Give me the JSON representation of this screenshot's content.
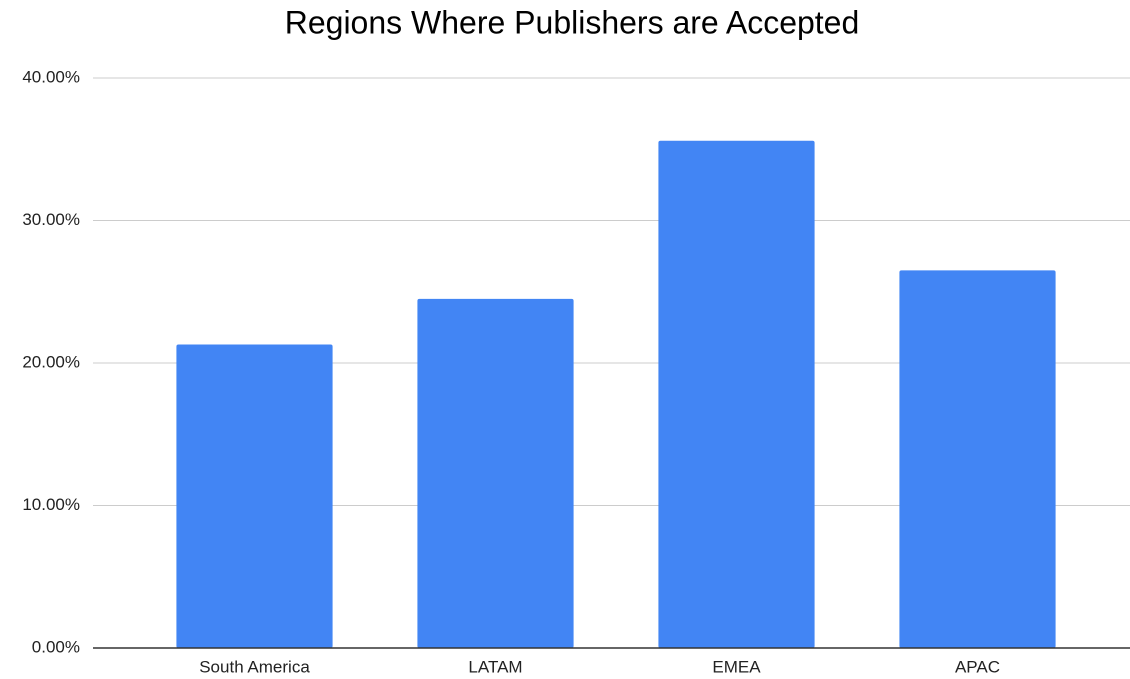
{
  "chart_data": {
    "type": "bar",
    "title": "Regions Where Publishers are Accepted",
    "categories": [
      "South America",
      "LATAM",
      "EMEA",
      "APAC"
    ],
    "values": [
      21.3,
      24.5,
      35.6,
      26.5
    ],
    "color": "#4285f4",
    "ylim": [
      0,
      40
    ],
    "yticks": [
      {
        "value": 0,
        "label": "0.00%"
      },
      {
        "value": 10,
        "label": "10.00%"
      },
      {
        "value": 20,
        "label": "20.00%"
      },
      {
        "value": 30,
        "label": "30.00%"
      },
      {
        "value": 40,
        "label": "40.00%"
      }
    ],
    "grid": true
  }
}
